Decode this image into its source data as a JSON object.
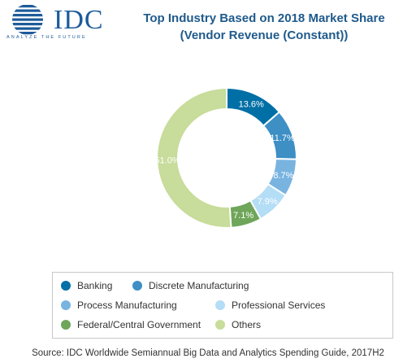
{
  "header": {
    "logo_text": "IDC",
    "logo_tagline": "ANALYZE THE FUTURE",
    "title_line1": "Top Industry Based on 2018 Market Share",
    "title_line2": "(Vendor Revenue (Constant))"
  },
  "chart_data": {
    "type": "pie",
    "variant": "donut",
    "title": "Top Industry Based on 2018 Market Share (Vendor Revenue (Constant))",
    "start": "12 o'clock",
    "direction": "clockwise",
    "slices": [
      {
        "name": "Banking",
        "value": 13.6,
        "label": "13.6%",
        "color": "#006fa6"
      },
      {
        "name": "Discrete Manufacturing",
        "value": 11.7,
        "label": "11.7%",
        "color": "#3d8fc4"
      },
      {
        "name": "Process Manufacturing",
        "value": 8.7,
        "label": "8.7%",
        "color": "#79b4e0"
      },
      {
        "name": "Professional Services",
        "value": 7.9,
        "label": "7.9%",
        "color": "#b4ddf6"
      },
      {
        "name": "Federal/Central Government",
        "value": 7.1,
        "label": "7.1%",
        "color": "#6fa65a"
      },
      {
        "name": "Others",
        "value": 51.0,
        "label": "51.0%",
        "color": "#c8dc9b"
      }
    ],
    "legend_position": "bottom"
  },
  "footer": {
    "source": "Source: IDC Worldwide Semiannual Big Data and Analytics Spending Guide, 2017H2"
  },
  "colors": {
    "brand": "#1d5b9a",
    "title": "#1f5a8b"
  }
}
